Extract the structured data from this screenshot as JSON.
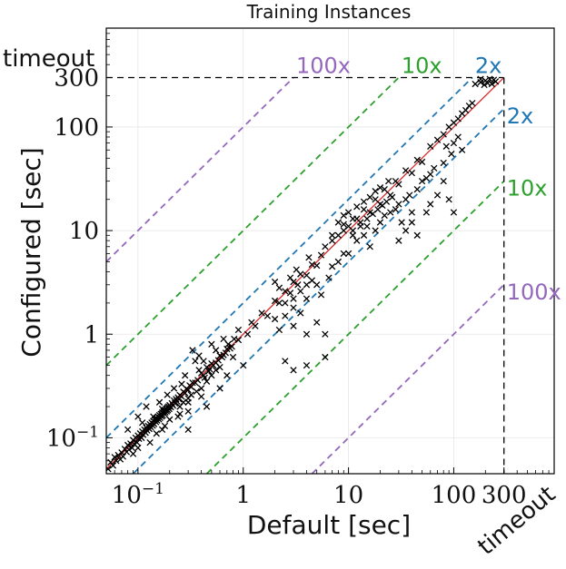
{
  "chart_data": {
    "type": "scatter",
    "title": "Training Instances",
    "xlabel": "Default [sec]",
    "ylabel": "Configured [sec]",
    "scale": "log-log",
    "xlim": [
      0.05,
      900
    ],
    "ylim": [
      0.045,
      900
    ],
    "timeout_value": 300,
    "timeout_label": "timeout",
    "x_ticks": [
      {
        "value": 0.1,
        "label": "10^-1"
      },
      {
        "value": 1,
        "label": "1"
      },
      {
        "value": 10,
        "label": "10"
      },
      {
        "value": 100,
        "label": "100"
      },
      {
        "value": 300,
        "label": "300"
      }
    ],
    "y_ticks": [
      {
        "value": 0.1,
        "label": "10^-1"
      },
      {
        "value": 1,
        "label": "1"
      },
      {
        "value": 10,
        "label": "10"
      },
      {
        "value": 100,
        "label": "100"
      },
      {
        "value": 300,
        "label": "300"
      }
    ],
    "grid": true,
    "marker": "x",
    "marker_color": "#000000",
    "diagonal_color": "#d62728",
    "reference_lines": [
      {
        "factor": 2,
        "label": "2x",
        "color": "#1f77b4"
      },
      {
        "factor": 10,
        "label": "10x",
        "color": "#2ca02c"
      },
      {
        "factor": 100,
        "label": "100x",
        "color": "#9467bd"
      }
    ],
    "points": [
      [
        0.052,
        0.05
      ],
      [
        0.055,
        0.058
      ],
      [
        0.058,
        0.054
      ],
      [
        0.06,
        0.065
      ],
      [
        0.062,
        0.06
      ],
      [
        0.065,
        0.068
      ],
      [
        0.068,
        0.062
      ],
      [
        0.07,
        0.072
      ],
      [
        0.072,
        0.066
      ],
      [
        0.075,
        0.078
      ],
      [
        0.078,
        0.073
      ],
      [
        0.08,
        0.085
      ],
      [
        0.082,
        0.077
      ],
      [
        0.085,
        0.088
      ],
      [
        0.088,
        0.08
      ],
      [
        0.09,
        0.095
      ],
      [
        0.092,
        0.087
      ],
      [
        0.095,
        0.1
      ],
      [
        0.098,
        0.09
      ],
      [
        0.1,
        0.105
      ],
      [
        0.102,
        0.098
      ],
      [
        0.105,
        0.11
      ],
      [
        0.108,
        0.1
      ],
      [
        0.11,
        0.115
      ],
      [
        0.112,
        0.107
      ],
      [
        0.115,
        0.12
      ],
      [
        0.118,
        0.112
      ],
      [
        0.12,
        0.125
      ],
      [
        0.122,
        0.118
      ],
      [
        0.125,
        0.13
      ],
      [
        0.128,
        0.122
      ],
      [
        0.13,
        0.135
      ],
      [
        0.132,
        0.127
      ],
      [
        0.135,
        0.14
      ],
      [
        0.138,
        0.131
      ],
      [
        0.14,
        0.145
      ],
      [
        0.142,
        0.136
      ],
      [
        0.145,
        0.15
      ],
      [
        0.148,
        0.142
      ],
      [
        0.15,
        0.155
      ],
      [
        0.152,
        0.147
      ],
      [
        0.155,
        0.16
      ],
      [
        0.158,
        0.151
      ],
      [
        0.16,
        0.165
      ],
      [
        0.162,
        0.156
      ],
      [
        0.165,
        0.17
      ],
      [
        0.168,
        0.161
      ],
      [
        0.17,
        0.175
      ],
      [
        0.172,
        0.165
      ],
      [
        0.175,
        0.18
      ],
      [
        0.178,
        0.171
      ],
      [
        0.18,
        0.185
      ],
      [
        0.182,
        0.176
      ],
      [
        0.185,
        0.19
      ],
      [
        0.188,
        0.18
      ],
      [
        0.19,
        0.196
      ],
      [
        0.192,
        0.185
      ],
      [
        0.195,
        0.2
      ],
      [
        0.198,
        0.19
      ],
      [
        0.2,
        0.206
      ],
      [
        0.205,
        0.198
      ],
      [
        0.21,
        0.215
      ],
      [
        0.215,
        0.205
      ],
      [
        0.22,
        0.228
      ],
      [
        0.225,
        0.215
      ],
      [
        0.23,
        0.236
      ],
      [
        0.235,
        0.225
      ],
      [
        0.24,
        0.245
      ],
      [
        0.245,
        0.236
      ],
      [
        0.25,
        0.258
      ],
      [
        0.26,
        0.25
      ],
      [
        0.27,
        0.278
      ],
      [
        0.28,
        0.27
      ],
      [
        0.29,
        0.295
      ],
      [
        0.3,
        0.29
      ],
      [
        0.31,
        0.32
      ],
      [
        0.32,
        0.31
      ],
      [
        0.33,
        0.34
      ],
      [
        0.35,
        0.34
      ],
      [
        0.37,
        0.36
      ],
      [
        0.4,
        0.42
      ],
      [
        0.42,
        0.4
      ],
      [
        0.45,
        0.48
      ],
      [
        0.48,
        0.46
      ],
      [
        0.5,
        0.52
      ],
      [
        0.55,
        0.53
      ],
      [
        0.6,
        0.62
      ],
      [
        0.65,
        0.63
      ],
      [
        0.7,
        0.72
      ],
      [
        0.75,
        0.73
      ],
      [
        0.08,
        0.12
      ],
      [
        0.1,
        0.16
      ],
      [
        0.12,
        0.2
      ],
      [
        0.15,
        0.11
      ],
      [
        0.18,
        0.13
      ],
      [
        0.2,
        0.15
      ],
      [
        0.25,
        0.2
      ],
      [
        0.3,
        0.24
      ],
      [
        0.22,
        0.3
      ],
      [
        0.28,
        0.4
      ],
      [
        0.35,
        0.55
      ],
      [
        0.3,
        0.18
      ],
      [
        0.4,
        0.3
      ],
      [
        0.45,
        0.35
      ],
      [
        0.5,
        0.4
      ],
      [
        0.6,
        0.48
      ],
      [
        0.33,
        0.7
      ],
      [
        0.38,
        0.62
      ],
      [
        0.42,
        0.55
      ],
      [
        0.55,
        0.7
      ],
      [
        0.13,
        0.09
      ],
      [
        0.17,
        0.12
      ],
      [
        0.24,
        0.16
      ],
      [
        0.27,
        0.22
      ],
      [
        0.32,
        0.26
      ],
      [
        0.36,
        0.28
      ],
      [
        0.26,
        0.33
      ],
      [
        0.19,
        0.26
      ],
      [
        0.16,
        0.22
      ],
      [
        0.11,
        0.14
      ],
      [
        0.43,
        0.38
      ],
      [
        0.47,
        0.44
      ],
      [
        0.52,
        0.5
      ],
      [
        0.58,
        0.56
      ],
      [
        0.63,
        0.6
      ],
      [
        0.68,
        0.66
      ],
      [
        0.72,
        0.8
      ],
      [
        0.78,
        0.76
      ],
      [
        0.82,
        0.9
      ],
      [
        0.9,
        0.88
      ],
      [
        0.3,
        0.12
      ],
      [
        0.45,
        0.2
      ],
      [
        0.6,
        0.3
      ],
      [
        0.8,
        0.6
      ],
      [
        1.0,
        0.5
      ],
      [
        0.7,
        0.4
      ],
      [
        0.5,
        0.8
      ],
      [
        0.55,
        0.45
      ],
      [
        0.38,
        0.45
      ],
      [
        0.65,
        0.9
      ],
      [
        0.25,
        0.17
      ],
      [
        0.3,
        0.22
      ],
      [
        0.4,
        0.25
      ],
      [
        0.9,
        1.1
      ],
      [
        1.1,
        1.0
      ],
      [
        1.2,
        1.3
      ],
      [
        1.3,
        1.2
      ],
      [
        1.5,
        1.6
      ],
      [
        1.7,
        1.5
      ],
      [
        2.0,
        2.1
      ],
      [
        2.2,
        2.0
      ],
      [
        2.5,
        2.6
      ],
      [
        2.8,
        2.5
      ],
      [
        3.0,
        3.2
      ],
      [
        3.3,
        3.0
      ],
      [
        3.5,
        3.8
      ],
      [
        4.0,
        3.7
      ],
      [
        4.5,
        4.7
      ],
      [
        5.0,
        4.6
      ],
      [
        5.5,
        5.8
      ],
      [
        2.0,
        1.4
      ],
      [
        2.5,
        2.0
      ],
      [
        3.0,
        2.2
      ],
      [
        3.5,
        2.6
      ],
      [
        4.0,
        3.0
      ],
      [
        4.5,
        3.3
      ],
      [
        2.2,
        2.8
      ],
      [
        2.8,
        3.5
      ],
      [
        3.2,
        4.2
      ],
      [
        4.2,
        5.5
      ],
      [
        2.0,
        3.2
      ],
      [
        2.5,
        1.5
      ],
      [
        3.0,
        1.8
      ],
      [
        3.5,
        1.6
      ],
      [
        4.0,
        2.2
      ],
      [
        5.0,
        3.0
      ],
      [
        3.0,
        1.2
      ],
      [
        4.0,
        1.0
      ],
      [
        5.0,
        1.3
      ],
      [
        6.0,
        1.0
      ],
      [
        3.0,
        0.45
      ],
      [
        4.0,
        0.5
      ],
      [
        2.5,
        0.55
      ],
      [
        6.0,
        0.6
      ],
      [
        2.2,
        1.1
      ],
      [
        5.5,
        2.4
      ],
      [
        6.5,
        3.5
      ],
      [
        7.0,
        4.5
      ],
      [
        8.0,
        5.0
      ],
      [
        9.0,
        6.0
      ],
      [
        6.0,
        7.0
      ],
      [
        7.0,
        8.0
      ],
      [
        8.0,
        9.0
      ],
      [
        9.0,
        10.0
      ],
      [
        10.0,
        11.0
      ],
      [
        11.0,
        10.0
      ],
      [
        12.0,
        13.0
      ],
      [
        13.0,
        12.0
      ],
      [
        14.0,
        16.0
      ],
      [
        16.0,
        15.0
      ],
      [
        18.0,
        20.0
      ],
      [
        20.0,
        18.0
      ],
      [
        22.0,
        25.0
      ],
      [
        25.0,
        22.0
      ],
      [
        28.0,
        30.0
      ],
      [
        30.0,
        28.0
      ],
      [
        35.0,
        38.0
      ],
      [
        40.0,
        36.0
      ],
      [
        45.0,
        48.0
      ],
      [
        50.0,
        46.0
      ],
      [
        10.0,
        6.0
      ],
      [
        12.0,
        8.0
      ],
      [
        14.0,
        9.0
      ],
      [
        15.0,
        11.0
      ],
      [
        16.0,
        7.0
      ],
      [
        18.0,
        10.0
      ],
      [
        20.0,
        12.0
      ],
      [
        22.0,
        14.0
      ],
      [
        25.0,
        15.0
      ],
      [
        28.0,
        16.0
      ],
      [
        30.0,
        18.0
      ],
      [
        32.0,
        12.0
      ],
      [
        35.0,
        20.0
      ],
      [
        38.0,
        22.0
      ],
      [
        40.0,
        15.0
      ],
      [
        45.0,
        25.0
      ],
      [
        50.0,
        30.0
      ],
      [
        55.0,
        32.0
      ],
      [
        60.0,
        35.0
      ],
      [
        65.0,
        40.0
      ],
      [
        8.0,
        12.0
      ],
      [
        9.0,
        14.0
      ],
      [
        10.0,
        15.0
      ],
      [
        11.0,
        13.0
      ],
      [
        12.0,
        17.0
      ],
      [
        14.0,
        19.0
      ],
      [
        16.0,
        21.0
      ],
      [
        18.0,
        24.0
      ],
      [
        20.0,
        26.0
      ],
      [
        24.0,
        30.0
      ],
      [
        7.0,
        9.0
      ],
      [
        9.0,
        11.5
      ],
      [
        11.0,
        9.0
      ],
      [
        13.0,
        11.0
      ],
      [
        15.0,
        13.0
      ],
      [
        17.0,
        14.5
      ],
      [
        19.0,
        16.0
      ],
      [
        21.0,
        17.5
      ],
      [
        23.0,
        19.0
      ],
      [
        26.0,
        21.0
      ],
      [
        30.0,
        8.0
      ],
      [
        40.0,
        12.0
      ],
      [
        35.0,
        10.0
      ],
      [
        45.0,
        9.0
      ],
      [
        55.0,
        15.0
      ],
      [
        60.0,
        18.0
      ],
      [
        70.0,
        22.0
      ],
      [
        80.0,
        30.0
      ],
      [
        90.0,
        20.0
      ],
      [
        100.0,
        15.0
      ],
      [
        60.0,
        65.0
      ],
      [
        70.0,
        75.0
      ],
      [
        80.0,
        85.0
      ],
      [
        90.0,
        100.0
      ],
      [
        100.0,
        110.0
      ],
      [
        110.0,
        120.0
      ],
      [
        120.0,
        135.0
      ],
      [
        130.0,
        145.0
      ],
      [
        140.0,
        160.0
      ],
      [
        150.0,
        170.0
      ],
      [
        160.0,
        260.0
      ],
      [
        180.0,
        270.0
      ],
      [
        200.0,
        280.0
      ],
      [
        210.0,
        265.0
      ],
      [
        220.0,
        290.0
      ],
      [
        240.0,
        285.0
      ],
      [
        250.0,
        275.0
      ],
      [
        180.0,
        290.0
      ],
      [
        230.0,
        260.0
      ],
      [
        195.0,
        255.0
      ],
      [
        80.0,
        45.0
      ],
      [
        85.0,
        65.0
      ],
      [
        95.0,
        55.0
      ],
      [
        100.0,
        70.0
      ],
      [
        110.0,
        80.0
      ],
      [
        120.0,
        60.0
      ],
      [
        0.09,
        0.07
      ],
      [
        0.1,
        0.08
      ],
      [
        0.14,
        0.16
      ],
      [
        0.17,
        0.19
      ]
    ]
  }
}
